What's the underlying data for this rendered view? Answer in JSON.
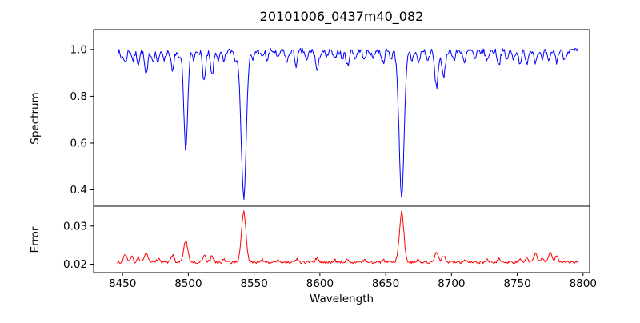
{
  "chart_data": {
    "type": "line",
    "title": "20101006_0437m40_082",
    "xlabel": "Wavelength",
    "grid": false,
    "legend": "none",
    "x_axis": {
      "xlim": [
        8428,
        8805
      ],
      "data_start": 8446,
      "data_end": 8796,
      "xticks": [
        {
          "v": 8450,
          "label": "8450"
        },
        {
          "v": 8500,
          "label": "8500"
        },
        {
          "v": 8550,
          "label": "8550"
        },
        {
          "v": 8600,
          "label": "8600"
        },
        {
          "v": 8650,
          "label": "8650"
        },
        {
          "v": 8700,
          "label": "8700"
        },
        {
          "v": 8750,
          "label": "8750"
        },
        {
          "v": 8800,
          "label": "8800"
        }
      ]
    },
    "feature_format": [
      "x_center",
      "amplitude",
      "sigma"
    ],
    "panels": [
      {
        "name": "spectrum",
        "ylabel": "Spectrum",
        "line_color": "#0000ff",
        "ylim": [
          0.33,
          1.085
        ],
        "yticks": [
          {
            "v": 0.4,
            "label": "0.4"
          },
          {
            "v": 0.6,
            "label": "0.6"
          },
          {
            "v": 0.8,
            "label": "0.8"
          },
          {
            "v": 1.0,
            "label": "1.0"
          }
        ],
        "baseline": 0.993,
        "noise_amplitude": 0.013,
        "feature_sign": -1,
        "features": [
          [
            8449,
            0.03,
            0.9
          ],
          [
            8452,
            0.05,
            1.0
          ],
          [
            8458,
            0.04,
            0.9
          ],
          [
            8462,
            0.05,
            1.0
          ],
          [
            8468,
            0.105,
            1.2
          ],
          [
            8473,
            0.04,
            0.9
          ],
          [
            8477,
            0.05,
            1.0
          ],
          [
            8482,
            0.035,
            0.9
          ],
          [
            8488,
            0.09,
            1.1
          ],
          [
            8493,
            0.04,
            0.9
          ],
          [
            8498.02,
            0.415,
            1.5
          ],
          [
            8504,
            0.04,
            0.9
          ],
          [
            8512,
            0.125,
            1.2
          ],
          [
            8518,
            0.105,
            1.2
          ],
          [
            8523,
            0.04,
            0.9
          ],
          [
            8527,
            0.05,
            1.0
          ],
          [
            8536,
            0.04,
            0.9
          ],
          [
            8542.09,
            0.625,
            1.9
          ],
          [
            8549,
            0.04,
            0.9
          ],
          [
            8556,
            0.03,
            0.9
          ],
          [
            8560,
            0.04,
            0.9
          ],
          [
            8568,
            0.035,
            0.9
          ],
          [
            8575,
            0.05,
            1.0
          ],
          [
            8582,
            0.06,
            1.0
          ],
          [
            8590,
            0.045,
            0.9
          ],
          [
            8598,
            0.085,
            1.2
          ],
          [
            8605,
            0.03,
            0.9
          ],
          [
            8611,
            0.04,
            0.9
          ],
          [
            8617,
            0.035,
            0.9
          ],
          [
            8621,
            0.065,
            1.0
          ],
          [
            8627,
            0.03,
            0.9
          ],
          [
            8634,
            0.04,
            0.9
          ],
          [
            8640,
            0.03,
            0.9
          ],
          [
            8648,
            0.05,
            1.0
          ],
          [
            8654,
            0.03,
            0.9
          ],
          [
            8662.14,
            0.62,
            1.9
          ],
          [
            8670,
            0.04,
            0.9
          ],
          [
            8675,
            0.05,
            1.0
          ],
          [
            8682,
            0.045,
            0.9
          ],
          [
            8688.6,
            0.155,
            1.3
          ],
          [
            8694,
            0.12,
            1.2
          ],
          [
            8702,
            0.04,
            0.9
          ],
          [
            8710,
            0.05,
            1.0
          ],
          [
            8718,
            0.04,
            0.9
          ],
          [
            8727,
            0.045,
            0.9
          ],
          [
            8736,
            0.06,
            1.0
          ],
          [
            8742,
            0.04,
            0.9
          ],
          [
            8747,
            0.035,
            0.9
          ],
          [
            8752,
            0.05,
            1.0
          ],
          [
            8757,
            0.055,
            1.0
          ],
          [
            8764,
            0.045,
            0.9
          ],
          [
            8769,
            0.04,
            0.9
          ],
          [
            8774,
            0.05,
            1.0
          ],
          [
            8780,
            0.045,
            0.9
          ],
          [
            8786,
            0.035,
            0.9
          ]
        ]
      },
      {
        "name": "error",
        "ylabel": "Error",
        "line_color": "#ff0000",
        "ylim": [
          0.0178,
          0.0352
        ],
        "yticks": [
          {
            "v": 0.02,
            "label": "0.02"
          },
          {
            "v": 0.03,
            "label": "0.03"
          }
        ],
        "baseline": 0.0205,
        "noise_amplitude": 0.00035,
        "feature_sign": 1,
        "features": [
          [
            8452,
            0.002,
            1.2
          ],
          [
            8457,
            0.0015,
            1.0
          ],
          [
            8462,
            0.0012,
            1.0
          ],
          [
            8468,
            0.0024,
            1.3
          ],
          [
            8477,
            0.001,
            1.0
          ],
          [
            8488,
            0.0018,
            1.2
          ],
          [
            8498.02,
            0.0056,
            1.5
          ],
          [
            8512,
            0.0019,
            1.2
          ],
          [
            8518,
            0.0016,
            1.2
          ],
          [
            8527,
            0.0008,
            1.0
          ],
          [
            8542.09,
            0.0133,
            1.7
          ],
          [
            8556,
            0.0008,
            1.0
          ],
          [
            8568,
            0.0007,
            1.0
          ],
          [
            8582,
            0.0009,
            1.0
          ],
          [
            8598,
            0.0012,
            1.2
          ],
          [
            8611,
            0.0007,
            1.0
          ],
          [
            8621,
            0.0009,
            1.0
          ],
          [
            8634,
            0.0006,
            1.0
          ],
          [
            8648,
            0.0008,
            1.0
          ],
          [
            8662.14,
            0.0131,
            1.7
          ],
          [
            8675,
            0.0008,
            1.0
          ],
          [
            8688.6,
            0.0024,
            1.3
          ],
          [
            8694,
            0.0018,
            1.2
          ],
          [
            8710,
            0.0008,
            1.0
          ],
          [
            8727,
            0.0007,
            1.0
          ],
          [
            8736,
            0.0009,
            1.0
          ],
          [
            8752,
            0.0008,
            1.0
          ],
          [
            8757,
            0.0012,
            1.0
          ],
          [
            8764,
            0.0026,
            1.2
          ],
          [
            8769,
            0.0014,
            1.0
          ],
          [
            8775,
            0.003,
            1.2
          ],
          [
            8780,
            0.002,
            1.0
          ]
        ]
      }
    ]
  },
  "colors": {
    "background": "#ffffff",
    "spine": "#000000",
    "text": "#000000",
    "spectrum_line": "#0000ff",
    "error_line": "#ff0000"
  }
}
